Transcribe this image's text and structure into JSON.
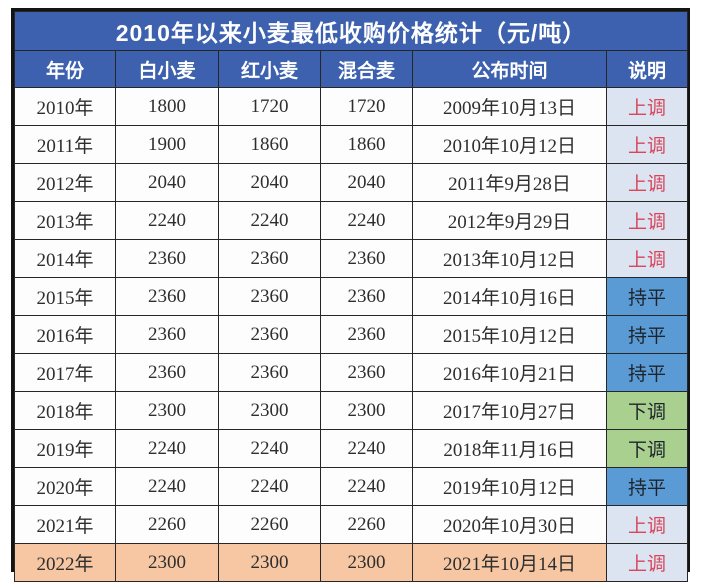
{
  "colors": {
    "header_bg": "#3d61ae",
    "header_text": "#ffffff",
    "body_text": "#2e2e2e",
    "up_bg": "#dce3f1",
    "up_text": "#d8465a",
    "flat_bg": "#5b9bd5",
    "down_bg": "#a9d08e",
    "highlight_row_bg": "#f6c7a2",
    "border": "#141414"
  },
  "status_classes": {
    "上调": "status-up",
    "持平": "status-flat",
    "下调": "status-down"
  },
  "highlight_rows": [
    12
  ],
  "chart_data": {
    "type": "table",
    "title": "2010年以来小麦最低收购价格统计（元/吨）",
    "columns": [
      "年份",
      "白小麦",
      "红小麦",
      "混合麦",
      "公布时间",
      "说明"
    ],
    "rows": [
      [
        "2010年",
        1800,
        1720,
        1720,
        "2009年10月13日",
        "上调"
      ],
      [
        "2011年",
        1900,
        1860,
        1860,
        "2010年10月12日",
        "上调"
      ],
      [
        "2012年",
        2040,
        2040,
        2040,
        "2011年9月28日",
        "上调"
      ],
      [
        "2013年",
        2240,
        2240,
        2240,
        "2012年9月29日",
        "上调"
      ],
      [
        "2014年",
        2360,
        2360,
        2360,
        "2013年10月12日",
        "上调"
      ],
      [
        "2015年",
        2360,
        2360,
        2360,
        "2014年10月16日",
        "持平"
      ],
      [
        "2016年",
        2360,
        2360,
        2360,
        "2015年10月12日",
        "持平"
      ],
      [
        "2017年",
        2360,
        2360,
        2360,
        "2016年10月21日",
        "持平"
      ],
      [
        "2018年",
        2300,
        2300,
        2300,
        "2017年10月27日",
        "下调"
      ],
      [
        "2019年",
        2240,
        2240,
        2240,
        "2018年11月16日",
        "下调"
      ],
      [
        "2020年",
        2240,
        2240,
        2240,
        "2019年10月12日",
        "持平"
      ],
      [
        "2021年",
        2260,
        2260,
        2260,
        "2020年10月30日",
        "上调"
      ],
      [
        "2022年",
        2300,
        2300,
        2300,
        "2021年10月14日",
        "上调"
      ]
    ]
  }
}
